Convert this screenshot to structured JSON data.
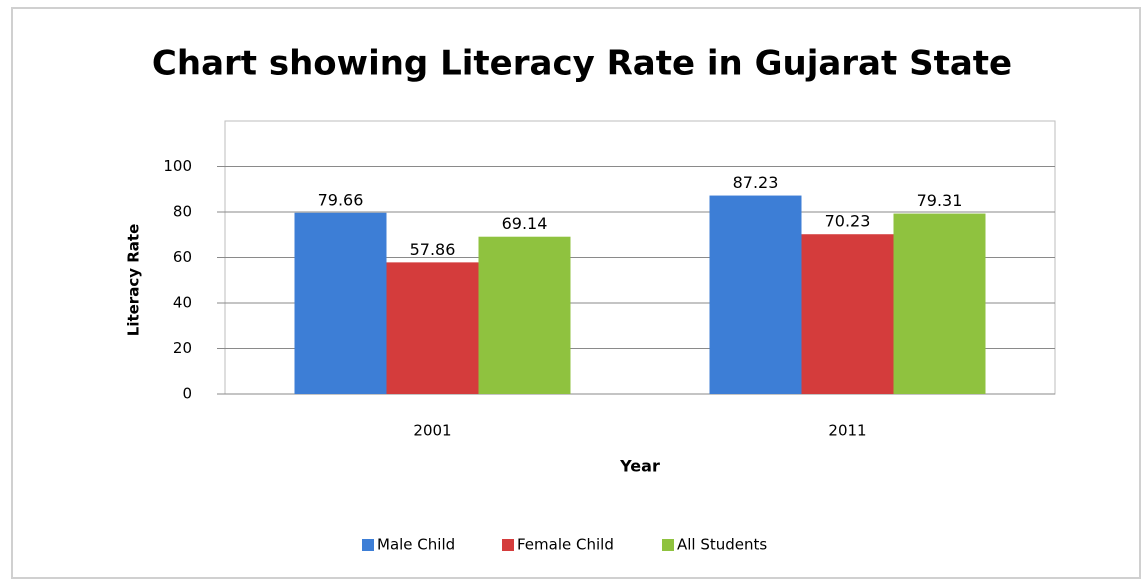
{
  "chart_data": {
    "type": "bar",
    "title": "Chart showing Literacy Rate in Gujarat State",
    "x_label": "Year",
    "y_label": "Literacy Rate",
    "categories": [
      "2001",
      "2011"
    ],
    "series": [
      {
        "name": "Male Child",
        "color": "#3d7ed6",
        "values": [
          79.66,
          87.23
        ]
      },
      {
        "name": "Female Child",
        "color": "#d43c3c",
        "values": [
          57.86,
          70.23
        ]
      },
      {
        "name": "All Students",
        "color": "#8fc23f",
        "values": [
          69.14,
          79.31
        ]
      }
    ],
    "ylim": [
      0,
      120
    ],
    "yticks": [
      0,
      20,
      40,
      60,
      80,
      100
    ],
    "grid": true,
    "legend": "bottom"
  }
}
